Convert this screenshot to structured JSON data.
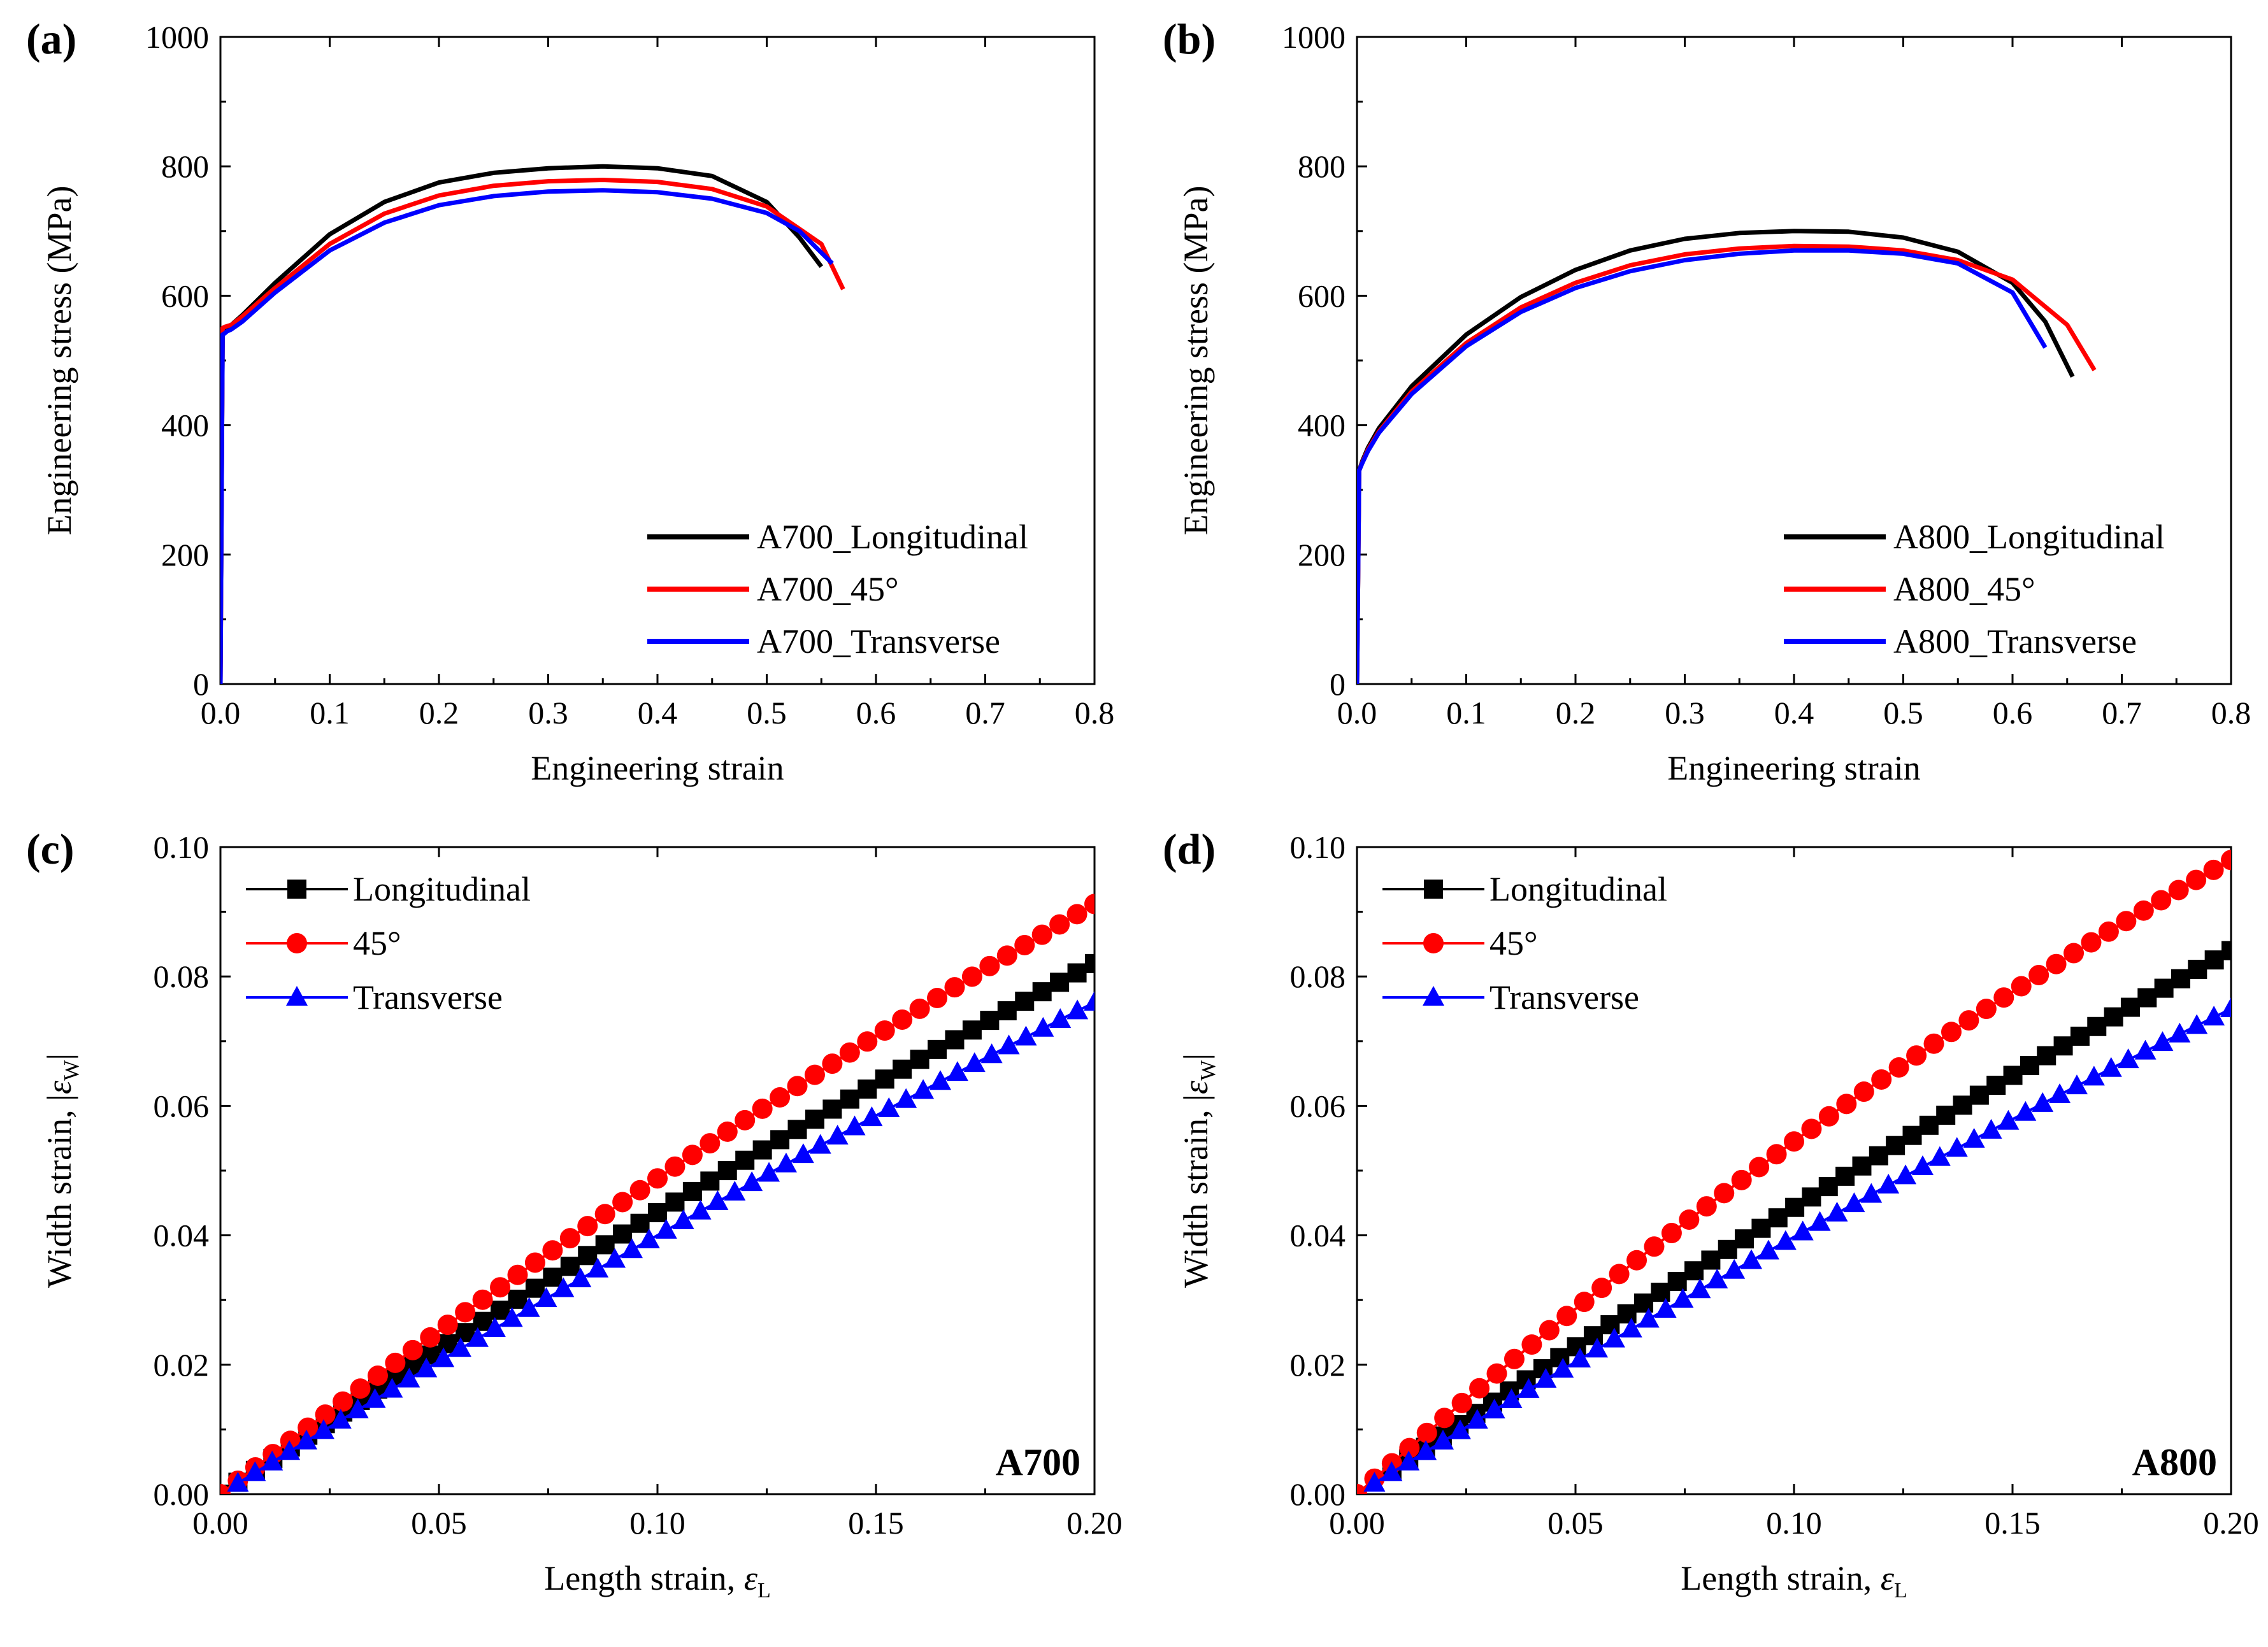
{
  "chart_data": [
    {
      "id": "a",
      "type": "line",
      "panel_label": "(a)",
      "xlabel": "Engineering strain",
      "ylabel": "Engineering stress (MPa)",
      "xlim": [
        0,
        0.8
      ],
      "ylim": [
        0,
        1000
      ],
      "xticks": [
        "0.0",
        "0.1",
        "0.2",
        "0.3",
        "0.4",
        "0.5",
        "0.6",
        "0.7",
        "0.8"
      ],
      "yticks": [
        "0",
        "200",
        "400",
        "600",
        "800",
        "1000"
      ],
      "legend_position": "bottom-right",
      "series": [
        {
          "name": "A700_Longitudinal",
          "color": "#000000",
          "x": [
            0,
            0.002,
            0.004,
            0.006,
            0.01,
            0.02,
            0.05,
            0.1,
            0.15,
            0.2,
            0.25,
            0.3,
            0.35,
            0.4,
            0.45,
            0.5,
            0.53,
            0.55
          ],
          "y": [
            0,
            545,
            550,
            552,
            555,
            570,
            620,
            695,
            745,
            775,
            790,
            797,
            800,
            797,
            785,
            745,
            690,
            645
          ]
        },
        {
          "name": "A700_45°",
          "color": "#ff0000",
          "x": [
            0,
            0.002,
            0.004,
            0.006,
            0.01,
            0.02,
            0.05,
            0.1,
            0.15,
            0.2,
            0.25,
            0.3,
            0.35,
            0.4,
            0.45,
            0.5,
            0.55,
            0.57
          ],
          "y": [
            0,
            550,
            552,
            553,
            555,
            568,
            612,
            680,
            727,
            755,
            770,
            777,
            779,
            776,
            765,
            738,
            680,
            610
          ]
        },
        {
          "name": "A700_Transverse",
          "color": "#0000ff",
          "x": [
            0,
            0.002,
            0.004,
            0.006,
            0.01,
            0.02,
            0.05,
            0.1,
            0.15,
            0.2,
            0.25,
            0.3,
            0.35,
            0.4,
            0.45,
            0.5,
            0.53,
            0.56
          ],
          "y": [
            0,
            540,
            542,
            545,
            548,
            560,
            605,
            670,
            713,
            740,
            754,
            761,
            763,
            760,
            750,
            728,
            700,
            650
          ]
        }
      ]
    },
    {
      "id": "b",
      "type": "line",
      "panel_label": "(b)",
      "xlabel": "Engineering strain",
      "ylabel": "Engineering stress (MPa)",
      "xlim": [
        0,
        0.8
      ],
      "ylim": [
        0,
        1000
      ],
      "xticks": [
        "0.0",
        "0.1",
        "0.2",
        "0.3",
        "0.4",
        "0.5",
        "0.6",
        "0.7",
        "0.8"
      ],
      "yticks": [
        "0",
        "200",
        "400",
        "600",
        "800",
        "1000"
      ],
      "legend_position": "bottom-right",
      "series": [
        {
          "name": "A800_Longitudinal",
          "color": "#000000",
          "x": [
            0,
            0.002,
            0.005,
            0.01,
            0.02,
            0.05,
            0.1,
            0.15,
            0.2,
            0.25,
            0.3,
            0.35,
            0.4,
            0.45,
            0.5,
            0.55,
            0.6,
            0.63,
            0.655
          ],
          "y": [
            0,
            330,
            345,
            365,
            395,
            460,
            540,
            598,
            640,
            670,
            688,
            697,
            700,
            699,
            690,
            668,
            620,
            560,
            475
          ]
        },
        {
          "name": "A800_45°",
          "color": "#ff0000",
          "x": [
            0,
            0.002,
            0.005,
            0.01,
            0.02,
            0.05,
            0.1,
            0.15,
            0.2,
            0.25,
            0.3,
            0.35,
            0.4,
            0.45,
            0.5,
            0.55,
            0.6,
            0.65,
            0.675
          ],
          "y": [
            0,
            330,
            343,
            362,
            390,
            452,
            527,
            582,
            620,
            647,
            664,
            673,
            677,
            676,
            670,
            655,
            625,
            555,
            485
          ]
        },
        {
          "name": "A800_Transverse",
          "color": "#0000ff",
          "x": [
            0,
            0.002,
            0.005,
            0.01,
            0.02,
            0.05,
            0.1,
            0.15,
            0.2,
            0.25,
            0.3,
            0.35,
            0.4,
            0.45,
            0.5,
            0.55,
            0.6,
            0.63
          ],
          "y": [
            0,
            330,
            342,
            360,
            388,
            448,
            522,
            575,
            612,
            638,
            655,
            665,
            670,
            670,
            665,
            650,
            605,
            520
          ]
        }
      ]
    },
    {
      "id": "c",
      "type": "line",
      "panel_label": "(c)",
      "corner_label": "A700",
      "xlabel_main": "Length strain, ",
      "xlabel_symbol": "ε",
      "xlabel_sub": "L",
      "ylabel_main": "Width strain, |",
      "ylabel_symbol": "ε",
      "ylabel_sub": "W",
      "ylabel_end": "|",
      "xlim": [
        0,
        0.2
      ],
      "ylim": [
        0,
        0.1
      ],
      "xticks": [
        "0.00",
        "0.05",
        "0.10",
        "0.15",
        "0.20"
      ],
      "yticks": [
        "0.00",
        "0.02",
        "0.04",
        "0.06",
        "0.08",
        "0.10"
      ],
      "legend_position": "top-left",
      "series": [
        {
          "name": "Longitudinal",
          "color": "#000000",
          "marker": "square",
          "a": 0.46,
          "b": -0.25,
          "x0": 0.0,
          "n": 51,
          "xmax": 0.2
        },
        {
          "name": "45°",
          "color": "#ff0000",
          "marker": "circle",
          "a": 0.52,
          "b": -0.32,
          "x0": 0.0,
          "n": 51,
          "xmax": 0.2
        },
        {
          "name": "Transverse",
          "color": "#0000ff",
          "marker": "triangle",
          "a": 0.42,
          "b": -0.2,
          "x0": 0.004,
          "n": 51,
          "xmax": 0.2
        }
      ]
    },
    {
      "id": "d",
      "type": "line",
      "panel_label": "(d)",
      "corner_label": "A800",
      "xlabel_main": "Length strain, ",
      "xlabel_symbol": "ε",
      "xlabel_sub": "L",
      "ylabel_main": "Width strain, |",
      "ylabel_symbol": "ε",
      "ylabel_sub": "W",
      "ylabel_end": "|",
      "xlim": [
        0,
        0.2
      ],
      "ylim": [
        0,
        0.1
      ],
      "xticks": [
        "0.00",
        "0.05",
        "0.10",
        "0.15",
        "0.20"
      ],
      "yticks": [
        "0.00",
        "0.02",
        "0.04",
        "0.06",
        "0.08",
        "0.10"
      ],
      "legend_position": "top-left",
      "series": [
        {
          "name": "Longitudinal",
          "color": "#000000",
          "marker": "square",
          "a": 0.465,
          "b": -0.225,
          "x0": 0.008,
          "n": 51,
          "xmax": 0.2
        },
        {
          "name": "45°",
          "color": "#ff0000",
          "marker": "circle",
          "a": 0.6,
          "b": -0.55,
          "x0": 0.0,
          "n": 51,
          "xmax": 0.2
        },
        {
          "name": "Transverse",
          "color": "#0000ff",
          "marker": "triangle",
          "a": 0.42,
          "b": -0.225,
          "x0": 0.004,
          "n": 51,
          "xmax": 0.2
        }
      ]
    }
  ]
}
